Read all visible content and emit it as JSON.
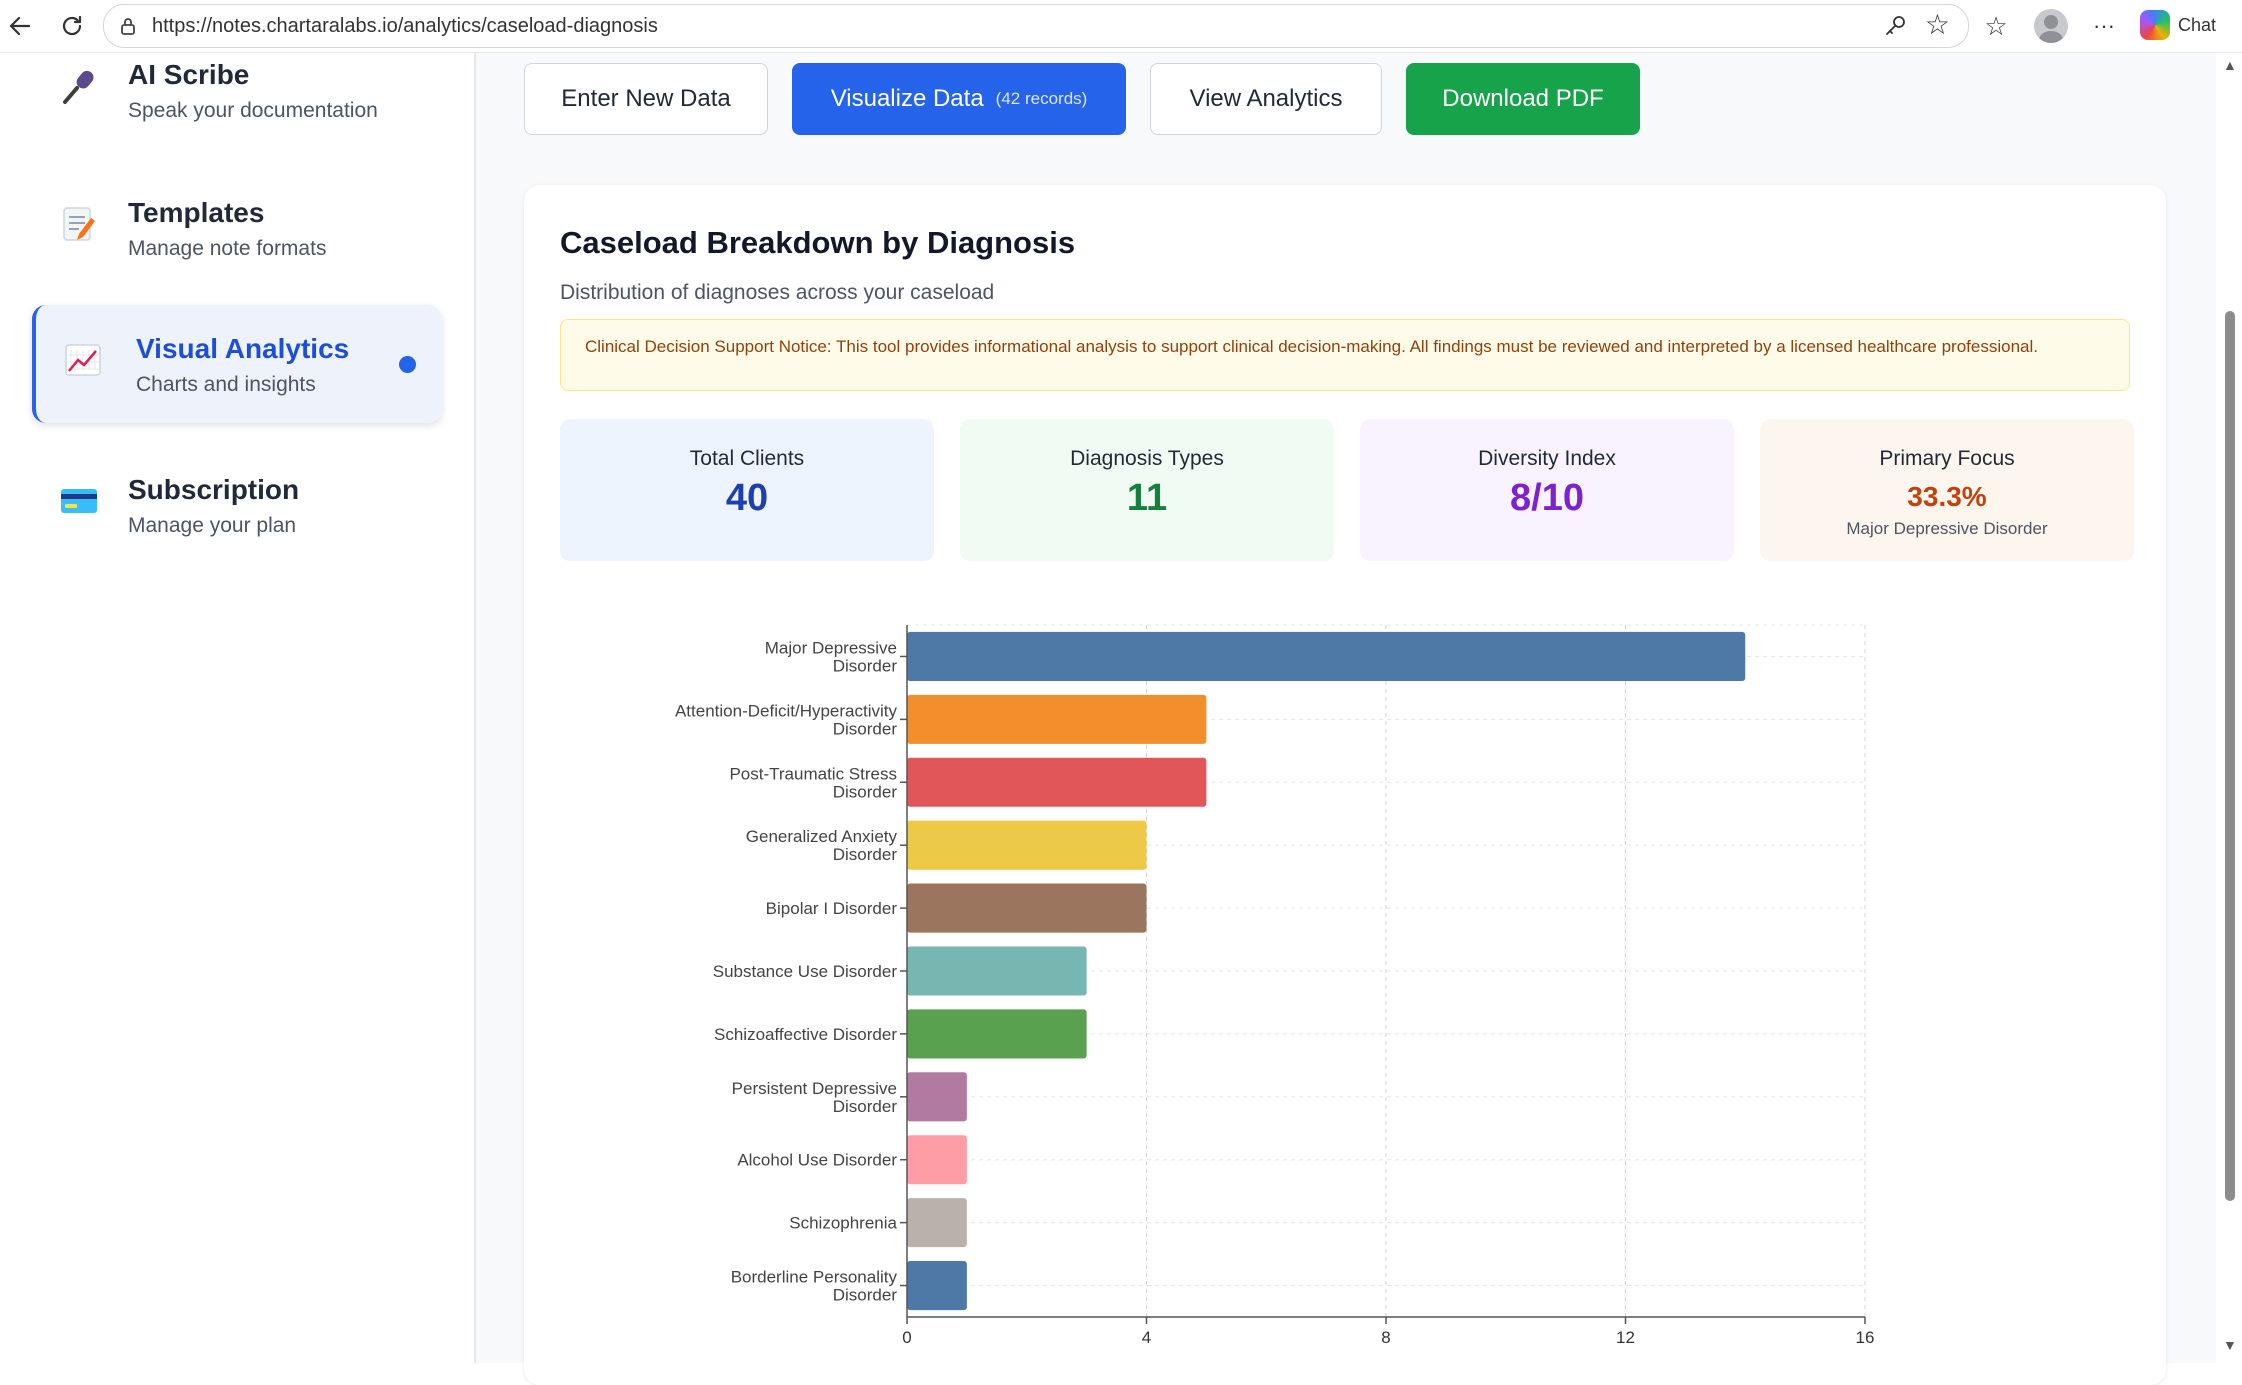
{
  "browser": {
    "url": "https://notes.chartaralabs.io/analytics/caseload-diagnosis",
    "chat_label": "Chat"
  },
  "sidebar": {
    "items": [
      {
        "title": "AI Scribe",
        "subtitle": "Speak your documentation",
        "icon": "microphone-icon"
      },
      {
        "title": "Templates",
        "subtitle": "Manage note formats",
        "icon": "memo-icon"
      },
      {
        "title": "Visual Analytics",
        "subtitle": "Charts and insights",
        "icon": "chart-increasing-icon",
        "active": true
      },
      {
        "title": "Subscription",
        "subtitle": "Manage your plan",
        "icon": "credit-card-icon"
      }
    ]
  },
  "toolbar": {
    "enter_label": "Enter New Data",
    "visualize_label": "Visualize Data",
    "visualize_records": "(42 records)",
    "analytics_label": "View Analytics",
    "download_label": "Download PDF"
  },
  "card": {
    "title": "Caseload Breakdown by Diagnosis",
    "subtitle": "Distribution of diagnoses across your caseload",
    "notice": "Clinical Decision Support Notice: This tool provides informational analysis to support clinical decision-making. All findings must be reviewed and interpreted by a licensed healthcare professional."
  },
  "stats": [
    {
      "label": "Total Clients",
      "value": "40",
      "color": "#1e40af",
      "bg": "#eef4fe"
    },
    {
      "label": "Diagnosis Types",
      "value": "11",
      "color": "#15803d",
      "bg": "#effbf3"
    },
    {
      "label": "Diversity Index",
      "value": "8/10",
      "color": "#7e22ce",
      "bg": "#f8f3fe"
    },
    {
      "label": "Primary Focus",
      "value": "33.3%",
      "extra": "Major Depressive Disorder",
      "color": "#c2410c",
      "bg": "#fdf6ee"
    }
  ],
  "chart_data": {
    "type": "bar",
    "orientation": "horizontal",
    "categories": [
      [
        "Major Depressive",
        "Disorder"
      ],
      [
        "Attention-Deficit/Hyperactivity",
        "Disorder"
      ],
      [
        "Post-Traumatic Stress",
        "Disorder"
      ],
      [
        "Generalized Anxiety",
        "Disorder"
      ],
      [
        "Bipolar I Disorder"
      ],
      [
        "Substance Use Disorder"
      ],
      [
        "Schizoaffective Disorder"
      ],
      [
        "Persistent Depressive",
        "Disorder"
      ],
      [
        "Alcohol Use Disorder"
      ],
      [
        "Schizophrenia"
      ],
      [
        "Borderline Personality",
        "Disorder"
      ]
    ],
    "values": [
      14,
      5,
      5,
      4,
      4,
      3,
      3,
      1,
      1,
      1,
      1
    ],
    "colors": [
      "#4e79a7",
      "#f28e2b",
      "#e15759",
      "#edc948",
      "#9c755f",
      "#76b7b2",
      "#59a14f",
      "#b07aa1",
      "#ff9da7",
      "#bab0ac",
      "#4e79a7"
    ],
    "xlim": [
      0,
      16
    ],
    "xticks": [
      0,
      4,
      8,
      12,
      16
    ],
    "grid": true
  }
}
